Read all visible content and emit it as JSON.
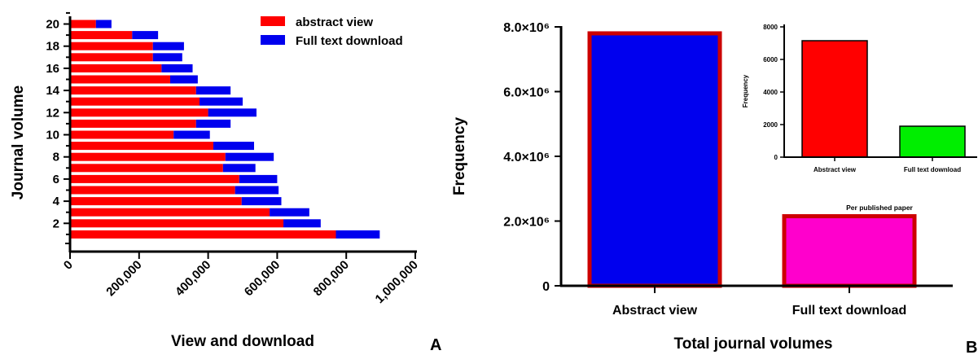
{
  "chart_data": [
    {
      "panel_label": "A",
      "type": "bar",
      "orientation": "horizontal",
      "stacked": true,
      "categories": [
        1,
        2,
        3,
        4,
        5,
        6,
        7,
        8,
        9,
        10,
        11,
        12,
        13,
        14,
        15,
        16,
        17,
        18,
        19,
        20
      ],
      "series": [
        {
          "name": "abstract view",
          "color": "#ff0000",
          "values": [
            770000,
            618000,
            578000,
            497000,
            478000,
            490000,
            443000,
            450000,
            415000,
            300000,
            365000,
            400000,
            375000,
            365000,
            290000,
            265000,
            240000,
            240000,
            180000,
            75000
          ]
        },
        {
          "name": "Full text download",
          "color": "#0000ee",
          "values": [
            127000,
            108000,
            115000,
            115000,
            126000,
            110000,
            94000,
            140000,
            118000,
            105000,
            100000,
            140000,
            125000,
            100000,
            80000,
            90000,
            85000,
            90000,
            75000,
            45000
          ]
        }
      ],
      "xlabel": "View and download",
      "ylabel": "Journal volume",
      "xlim": [
        0,
        1000000
      ],
      "xticks": [
        "0",
        "200,000",
        "400,000",
        "600,000",
        "800,000",
        "1,000,000"
      ],
      "xtick_values": [
        0,
        200000,
        400000,
        600000,
        800000,
        1000000
      ],
      "yticks": [
        "2",
        "4",
        "6",
        "8",
        "10",
        "12",
        "14",
        "16",
        "18",
        "20"
      ],
      "ytick_values": [
        2,
        4,
        6,
        8,
        10,
        12,
        14,
        16,
        18,
        20
      ],
      "legend": {
        "placement": "top-right",
        "entries": [
          "abstract view",
          "Full text download"
        ]
      },
      "grid": false
    },
    {
      "panel_label": "B",
      "type": "bar",
      "categories": [
        "Abstract view",
        "Full text download"
      ],
      "values": [
        7800000,
        2150000
      ],
      "colors": [
        "#0000ee",
        "#ff00cc"
      ],
      "edge_color": "#cc0000",
      "xlabel": "Total journal volumes",
      "ylabel": "Frequency",
      "ylim": [
        0,
        8000000
      ],
      "yticks": [
        "0",
        "2.0×10⁶",
        "4.0×10⁶",
        "6.0×10⁶",
        "8.0×10⁶"
      ],
      "ytick_values": [
        0,
        2000000,
        4000000,
        6000000,
        8000000
      ],
      "grid": false
    },
    {
      "panel_label": "",
      "type": "bar",
      "inset": true,
      "categories": [
        "Abstract view",
        "Full text download"
      ],
      "values": [
        7150,
        1900
      ],
      "colors": [
        "#ff0000",
        "#00ee00"
      ],
      "xlabel": "Per published paper",
      "ylabel": "Frequency",
      "ylim": [
        0,
        8000
      ],
      "yticks": [
        "0",
        "2000",
        "4000",
        "6000",
        "8000"
      ],
      "ytick_values": [
        0,
        2000,
        4000,
        6000,
        8000
      ],
      "grid": false
    }
  ]
}
